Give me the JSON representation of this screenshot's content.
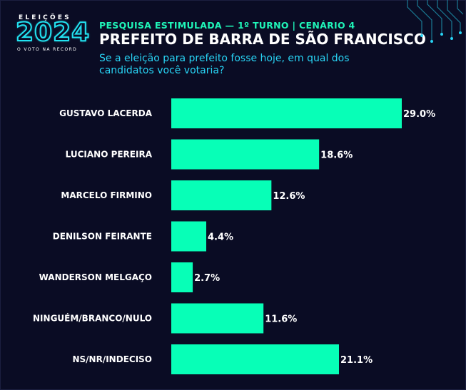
{
  "header": {
    "logo": {
      "top": "ELEIÇÕES",
      "year": "2024",
      "tagline": "O VOTO NA RECORD"
    },
    "kicker": "PESQUISA ESTIMULADA — 1º TURNO | CENÁRIO 4",
    "title": "PREFEITO DE BARRA DE SÃO FRANCISCO",
    "question": "Se a eleição para prefeito fosse hoje, em qual dos candidatos você votaria?"
  },
  "colors": {
    "background": "#0a0c24",
    "bar": "#07ffb7",
    "kicker": "#1ff5b8",
    "question": "#28d4f5",
    "text": "#ffffff"
  },
  "chart_data": {
    "type": "bar",
    "orientation": "horizontal",
    "categories": [
      "GUSTAVO LACERDA",
      "LUCIANO PEREIRA",
      "MARCELO FIRMINO",
      "DENILSON FEIRANTE",
      "WANDERSON MELGAÇO",
      "NINGUÉM/BRANCO/NULO",
      "NS/NR/INDECISO"
    ],
    "values": [
      29.0,
      18.6,
      12.6,
      4.4,
      2.7,
      11.6,
      21.1
    ],
    "value_labels": [
      "29.0%",
      "18.6%",
      "12.6%",
      "4.4%",
      "2.7%",
      "11.6%",
      "21.1%"
    ],
    "xlim": [
      0,
      29.0
    ],
    "grid": false,
    "legend": "none"
  }
}
